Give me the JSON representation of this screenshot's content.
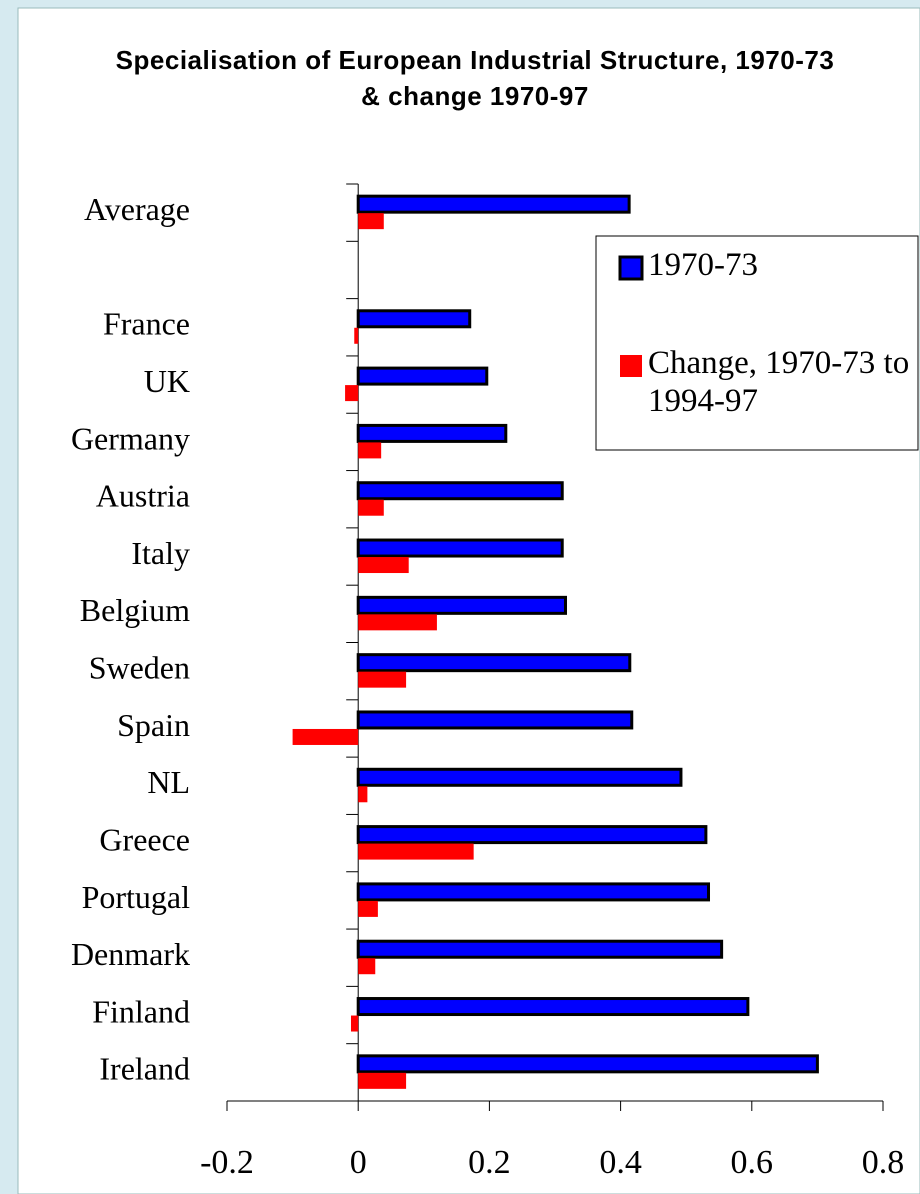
{
  "chart_data": {
    "type": "barh",
    "title": "Specialisation of European Industrial Structure, 1970-73 & change 1970-97",
    "categories": [
      "Average",
      null,
      "France",
      "UK",
      "Germany",
      "Austria",
      "Italy",
      "Belgium",
      "Sweden",
      "Spain",
      "NL",
      "Greece",
      "Portugal",
      "Denmark",
      "Finland",
      "Ireland"
    ],
    "series": [
      {
        "name": "1970-73",
        "color": "#0000ff",
        "values": [
          0.413,
          null,
          0.17,
          0.196,
          0.225,
          0.311,
          0.311,
          0.316,
          0.414,
          0.417,
          0.492,
          0.53,
          0.534,
          0.554,
          0.594,
          0.7
        ]
      },
      {
        "name": "Change, 1970-73 to 1994-97",
        "color": "#ff0000",
        "values": [
          0.039,
          null,
          -0.006,
          -0.02,
          0.035,
          0.039,
          0.077,
          0.12,
          0.073,
          -0.1,
          0.014,
          0.176,
          0.03,
          0.026,
          -0.011,
          0.073
        ]
      }
    ],
    "xlim": [
      -0.2,
      0.8
    ],
    "xticks": [
      -0.2,
      0,
      0.2,
      0.4,
      0.6,
      0.8
    ],
    "grid": false,
    "legend": "upper right"
  }
}
